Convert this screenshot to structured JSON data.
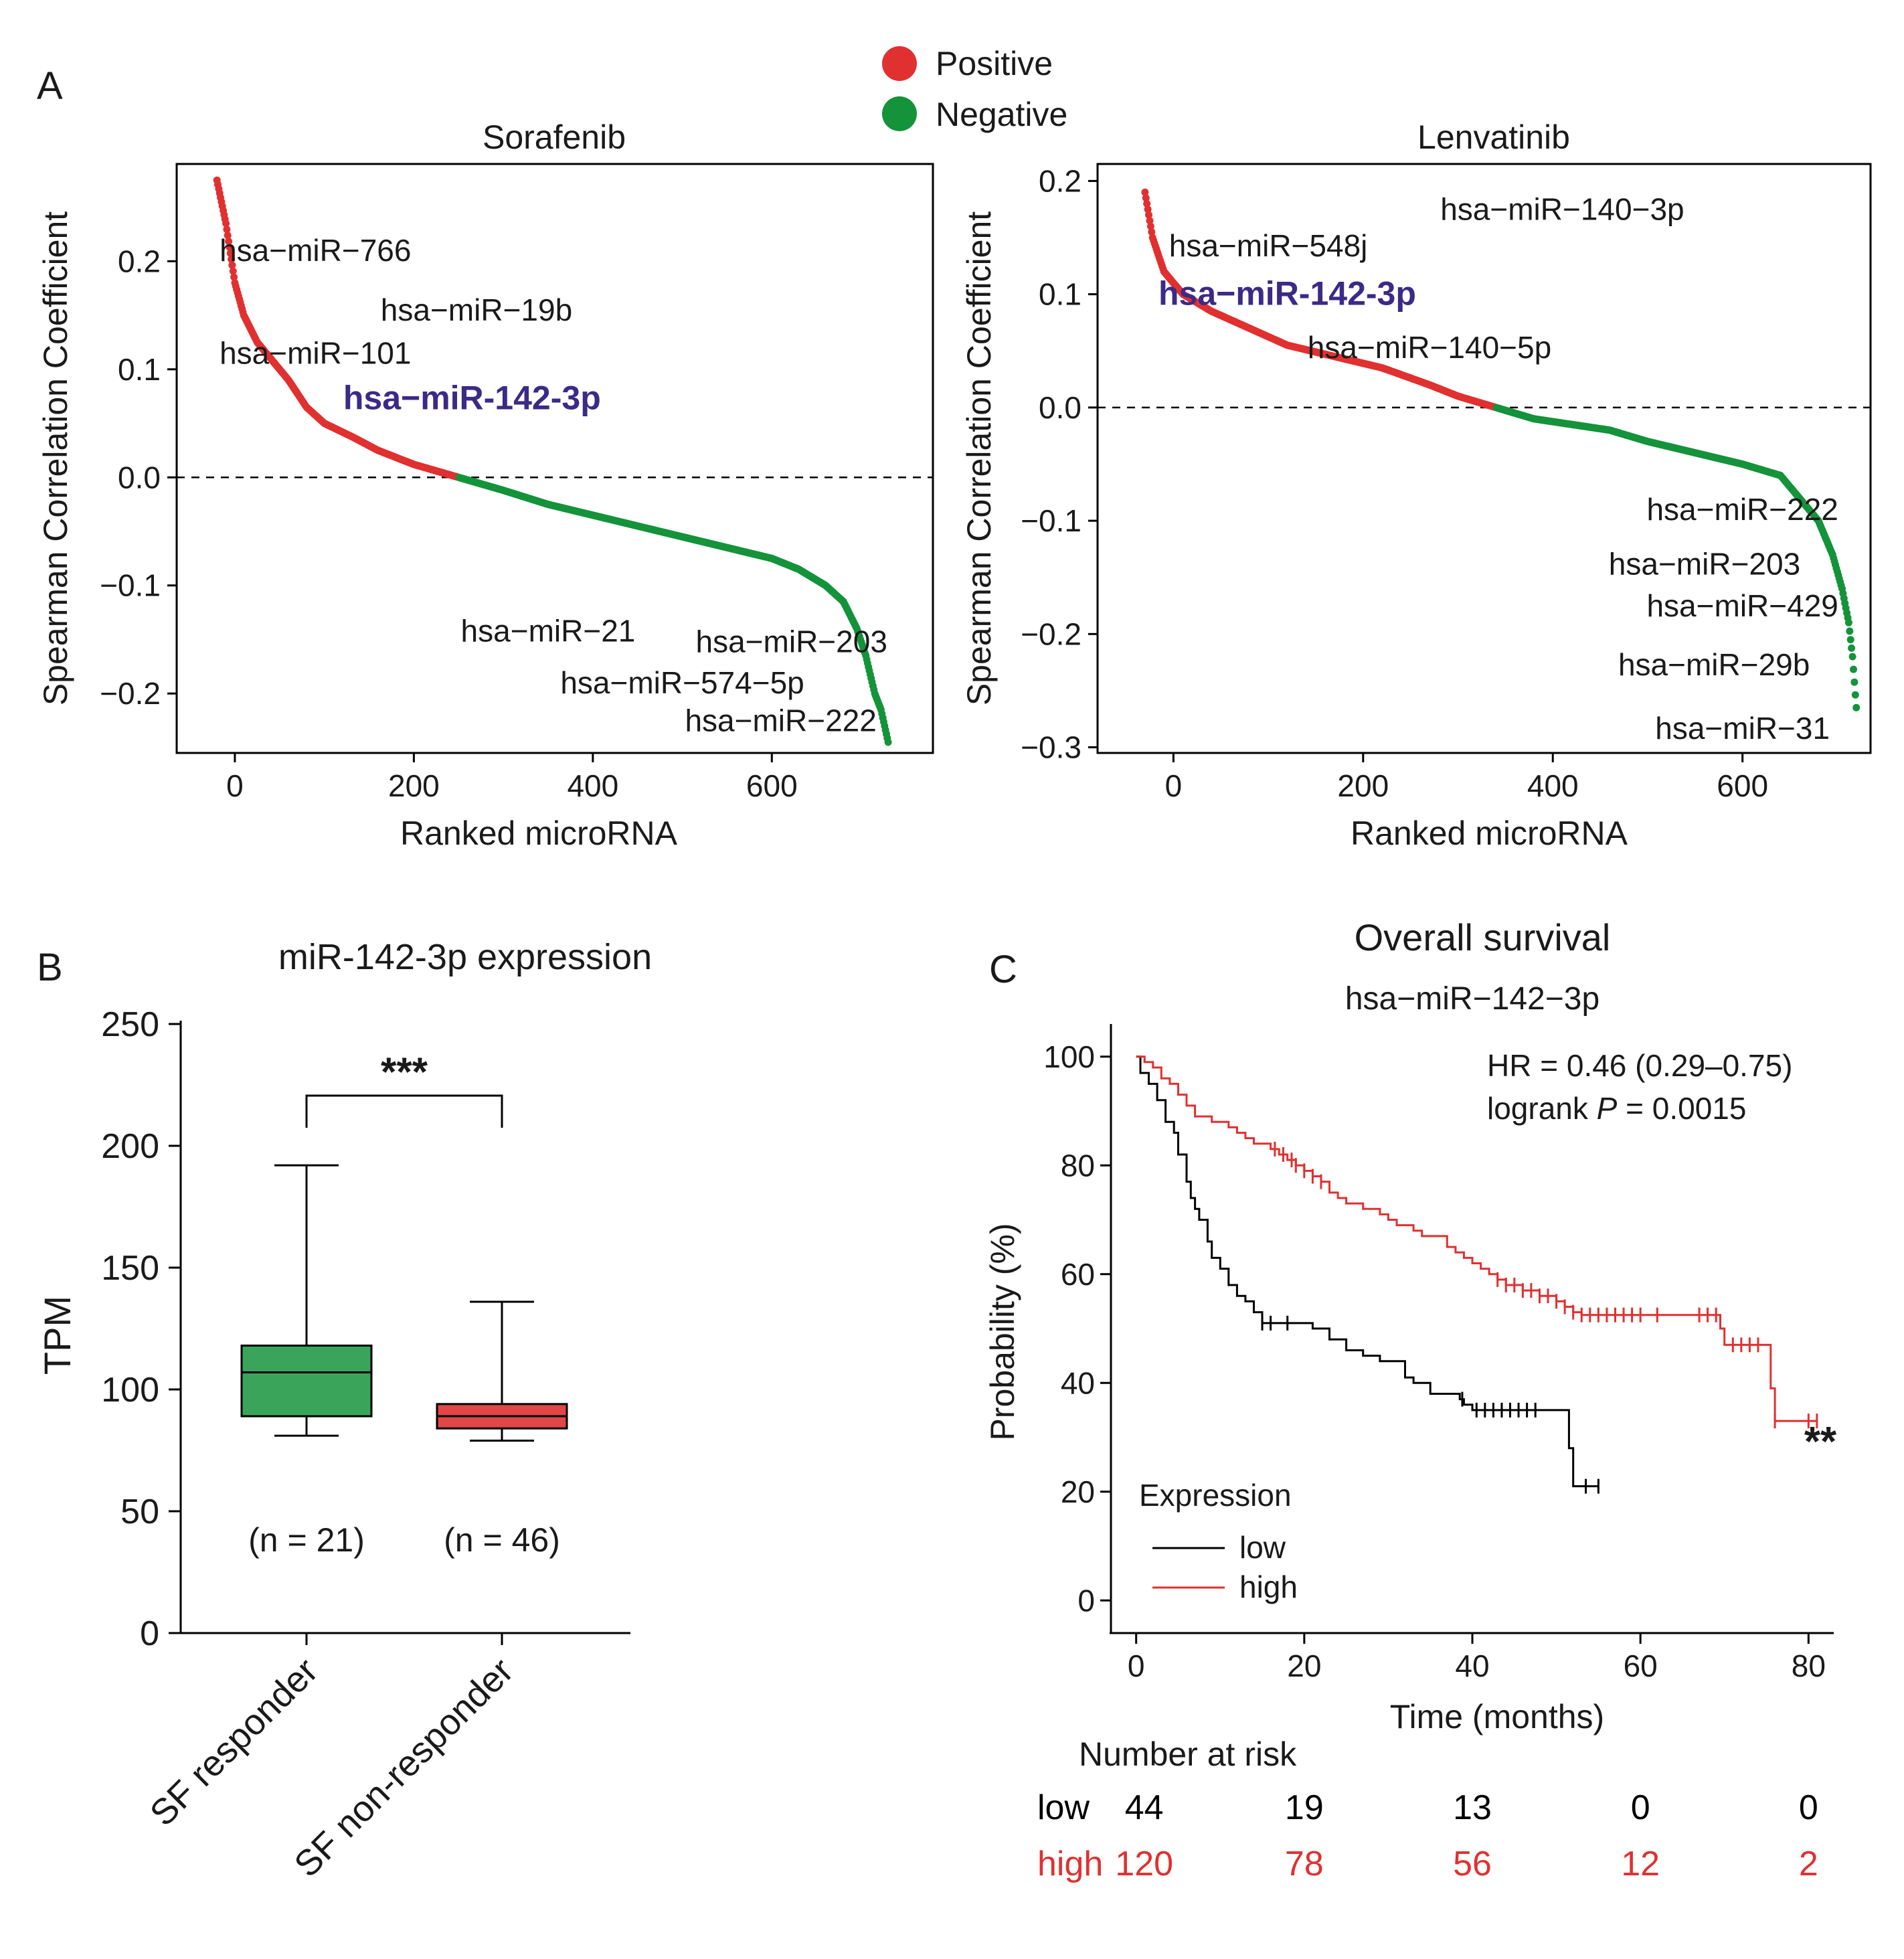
{
  "panel_labels": {
    "a": "A",
    "b": "B",
    "c": "C"
  },
  "legend": {
    "positive": {
      "label": "Positive",
      "color": "#e03030"
    },
    "negative": {
      "label": "Negative",
      "color": "#14933a"
    }
  },
  "colors": {
    "positive": "#e03030",
    "negative": "#14933a",
    "highlight": "#3b2a86",
    "low": "#000000",
    "high": "#e03030",
    "box_green": "#3aa55a",
    "box_red": "#e24646"
  },
  "chart_data": [
    {
      "id": "sorafenib",
      "type": "scatter",
      "title": "Sorafenib",
      "xlabel": "Ranked microRNA",
      "ylabel": "Spearman Correlation Coefficient",
      "xlim": [
        -65,
        780
      ],
      "ylim": [
        -0.255,
        0.29
      ],
      "xticks": [
        0,
        200,
        400,
        600
      ],
      "yticks": [
        0.2,
        0.1,
        0.0,
        -0.1,
        -0.2
      ],
      "ytick_labels": [
        "0.2",
        "0.1",
        "0.0",
        "−0.1",
        "−0.2"
      ],
      "zero_line": true,
      "n_points": 750,
      "x_start": -20,
      "x_end": 730,
      "crossover_rank": 250,
      "curve_knots": [
        [
          -20,
          0.275
        ],
        [
          -10,
          0.235
        ],
        [
          0,
          0.18
        ],
        [
          10,
          0.15
        ],
        [
          25,
          0.125
        ],
        [
          40,
          0.11
        ],
        [
          60,
          0.09
        ],
        [
          80,
          0.065
        ],
        [
          100,
          0.05
        ],
        [
          130,
          0.038
        ],
        [
          160,
          0.025
        ],
        [
          200,
          0.012
        ],
        [
          250,
          0.0
        ],
        [
          300,
          -0.012
        ],
        [
          350,
          -0.025
        ],
        [
          400,
          -0.035
        ],
        [
          450,
          -0.045
        ],
        [
          500,
          -0.055
        ],
        [
          550,
          -0.065
        ],
        [
          600,
          -0.075
        ],
        [
          630,
          -0.085
        ],
        [
          660,
          -0.1
        ],
        [
          680,
          -0.115
        ],
        [
          695,
          -0.14
        ],
        [
          705,
          -0.165
        ],
        [
          715,
          -0.2
        ],
        [
          722,
          -0.215
        ],
        [
          730,
          -0.245
        ]
      ],
      "annotations": [
        {
          "text": "hsa−miR−766",
          "x": 90,
          "y": 0.21,
          "bold": false
        },
        {
          "text": "hsa−miR−19b",
          "x": 270,
          "y": 0.155,
          "bold": false
        },
        {
          "text": "hsa−miR−101",
          "x": 90,
          "y": 0.115,
          "bold": false
        },
        {
          "text": "hsa−miR-142-3p",
          "x": 265,
          "y": 0.073,
          "bold": true
        },
        {
          "text": "hsa−miR−21",
          "x": 350,
          "y": -0.142,
          "bold": false
        },
        {
          "text": "hsa−miR−203",
          "x": 622,
          "y": -0.152,
          "bold": false
        },
        {
          "text": "hsa−miR−574−5p",
          "x": 500,
          "y": -0.19,
          "bold": false
        },
        {
          "text": "hsa−miR−222",
          "x": 610,
          "y": -0.225,
          "bold": false
        }
      ]
    },
    {
      "id": "lenvatinib",
      "type": "scatter",
      "title": "Lenvatinib",
      "xlabel": "Ranked microRNA",
      "ylabel": "Spearman Correlation Coefficient",
      "xlim": [
        -80,
        735
      ],
      "ylim": [
        -0.305,
        0.215
      ],
      "xticks": [
        0,
        200,
        400,
        600
      ],
      "yticks": [
        0.2,
        0.1,
        0.0,
        -0.1,
        -0.2,
        -0.3
      ],
      "ytick_labels": [
        "0.2",
        "0.1",
        "0.0",
        "−0.1",
        "−0.2",
        "−0.3"
      ],
      "zero_line": true,
      "n_points": 750,
      "x_start": -30,
      "x_end": 720,
      "crossover_rank": 340,
      "curve_knots": [
        [
          -30,
          0.19
        ],
        [
          -22,
          0.15
        ],
        [
          -10,
          0.12
        ],
        [
          10,
          0.1
        ],
        [
          40,
          0.085
        ],
        [
          80,
          0.07
        ],
        [
          120,
          0.055
        ],
        [
          170,
          0.045
        ],
        [
          220,
          0.035
        ],
        [
          270,
          0.02
        ],
        [
          300,
          0.01
        ],
        [
          340,
          0.0
        ],
        [
          380,
          -0.01
        ],
        [
          420,
          -0.015
        ],
        [
          460,
          -0.02
        ],
        [
          500,
          -0.03
        ],
        [
          550,
          -0.04
        ],
        [
          600,
          -0.05
        ],
        [
          640,
          -0.06
        ],
        [
          660,
          -0.08
        ],
        [
          680,
          -0.1
        ],
        [
          695,
          -0.13
        ],
        [
          705,
          -0.16
        ],
        [
          712,
          -0.19
        ],
        [
          716,
          -0.22
        ],
        [
          720,
          -0.265
        ]
      ],
      "annotations": [
        {
          "text": "hsa−miR−140−3p",
          "x": 410,
          "y": 0.175,
          "bold": false
        },
        {
          "text": "hsa−miR−548j",
          "x": 100,
          "y": 0.143,
          "bold": false
        },
        {
          "text": "hsa−miR-142-3p",
          "x": 120,
          "y": 0.1,
          "bold": true
        },
        {
          "text": "hsa−miR−140−5p",
          "x": 270,
          "y": 0.053,
          "bold": false
        },
        {
          "text": "hsa−miR−222",
          "x": 600,
          "y": -0.09,
          "bold": false
        },
        {
          "text": "hsa−miR−203",
          "x": 560,
          "y": -0.138,
          "bold": false
        },
        {
          "text": "hsa−miR−429",
          "x": 600,
          "y": -0.175,
          "bold": false
        },
        {
          "text": "hsa−miR−29b",
          "x": 570,
          "y": -0.227,
          "bold": false
        },
        {
          "text": "hsa−miR−31",
          "x": 600,
          "y": -0.283,
          "bold": false
        }
      ]
    },
    {
      "id": "boxplot",
      "type": "box",
      "title": "miR-142-3p expression",
      "ylabel": "TPM",
      "ylim": [
        0,
        250
      ],
      "yticks": [
        0,
        50,
        100,
        150,
        200,
        250
      ],
      "significance": "***",
      "groups": [
        {
          "label": "SF responder",
          "n_label": "(n = 21)",
          "min": 81,
          "q1": 89,
          "median": 107,
          "q3": 118,
          "max": 192,
          "color": "#3aa55a"
        },
        {
          "label": "SF non-responder",
          "n_label": "(n = 46)",
          "min": 79,
          "q1": 84,
          "median": 89,
          "q3": 94,
          "max": 136,
          "color": "#e24646"
        }
      ]
    },
    {
      "id": "survival",
      "type": "line",
      "title": "Overall survival",
      "subtitle": "hsa−miR−142−3p",
      "xlabel": "Time (months)",
      "ylabel": "Probability (%)",
      "xlim": [
        -3,
        83
      ],
      "ylim": [
        -6,
        106
      ],
      "xticks": [
        0,
        20,
        40,
        60,
        80
      ],
      "yticks": [
        0,
        20,
        40,
        60,
        80,
        100
      ],
      "hr_text": "HR = 0.46 (0.29–0.75)",
      "logrank_prefix": "logrank ",
      "logrank_p": "P",
      "logrank_value": " = 0.0015",
      "significance": "**",
      "legend_title": "Expression",
      "series": [
        {
          "name": "low",
          "color": "#000000",
          "steps": [
            [
              0,
              100
            ],
            [
              0.5,
              97
            ],
            [
              1.5,
              95
            ],
            [
              2.5,
              92
            ],
            [
              3.5,
              88
            ],
            [
              4.5,
              86
            ],
            [
              5,
              82
            ],
            [
              6,
              77
            ],
            [
              6.5,
              74
            ],
            [
              7,
              72
            ],
            [
              7.5,
              70
            ],
            [
              8.5,
              66
            ],
            [
              9,
              63
            ],
            [
              10,
              61
            ],
            [
              11,
              58
            ],
            [
              12,
              56
            ],
            [
              13,
              55
            ],
            [
              14,
              53
            ],
            [
              15,
              51
            ],
            [
              21,
              50
            ],
            [
              23,
              48
            ],
            [
              25,
              46
            ],
            [
              27,
              45
            ],
            [
              29,
              44
            ],
            [
              32,
              41
            ],
            [
              33,
              40
            ],
            [
              35,
              38
            ],
            [
              38.5,
              37
            ],
            [
              39,
              36
            ],
            [
              40,
              35
            ],
            [
              50,
              35
            ],
            [
              51.5,
              28
            ],
            [
              52,
              21
            ],
            [
              55,
              21
            ]
          ],
          "censor_x": [
            15,
            16,
            18,
            38.8,
            40.5,
            41.5,
            42.5,
            43.5,
            44.5,
            45.5,
            46.5,
            47.5,
            53.5,
            55
          ]
        },
        {
          "name": "high",
          "color": "#e03030",
          "steps": [
            [
              0,
              100
            ],
            [
              1,
              99
            ],
            [
              2,
              98
            ],
            [
              3,
              96
            ],
            [
              4,
              95
            ],
            [
              5,
              93
            ],
            [
              6,
              91
            ],
            [
              7,
              89
            ],
            [
              9,
              88
            ],
            [
              11,
              87
            ],
            [
              12,
              86
            ],
            [
              13,
              85
            ],
            [
              14,
              84
            ],
            [
              16,
              83
            ],
            [
              17,
              82
            ],
            [
              18,
              81
            ],
            [
              19,
              80
            ],
            [
              20,
              79
            ],
            [
              21,
              78
            ],
            [
              22,
              77
            ],
            [
              23,
              75
            ],
            [
              24,
              74
            ],
            [
              25,
              73
            ],
            [
              27,
              72
            ],
            [
              29,
              71
            ],
            [
              30,
              70
            ],
            [
              31,
              69
            ],
            [
              33,
              68
            ],
            [
              34,
              67
            ],
            [
              37,
              65
            ],
            [
              38,
              64
            ],
            [
              39,
              63
            ],
            [
              40,
              62
            ],
            [
              41,
              61
            ],
            [
              42,
              60
            ],
            [
              43,
              59
            ],
            [
              44,
              58
            ],
            [
              46,
              57
            ],
            [
              48,
              56
            ],
            [
              50,
              55
            ],
            [
              51,
              54
            ],
            [
              52,
              53
            ],
            [
              53,
              52.5
            ],
            [
              69,
              52.5
            ],
            [
              69.5,
              50
            ],
            [
              70,
              47
            ],
            [
              75,
              47
            ],
            [
              75.5,
              39
            ],
            [
              76,
              33
            ],
            [
              81,
              33
            ]
          ],
          "censor_x": [
            16.5,
            17.5,
            18.5,
            19,
            20,
            21,
            22,
            43,
            44,
            45,
            46,
            47,
            48,
            49,
            50,
            51,
            52,
            53,
            54,
            55,
            56,
            57,
            58,
            59,
            60,
            62,
            67,
            68,
            69,
            71,
            72,
            73,
            74,
            76,
            80,
            81
          ]
        }
      ],
      "risk_table": {
        "title": "Number at risk",
        "times": [
          0,
          20,
          40,
          60,
          80
        ],
        "rows": [
          {
            "label": "low",
            "color": "#000000",
            "values": [
              "44",
              "19",
              "13",
              "0",
              "0"
            ]
          },
          {
            "label": "high",
            "color": "#e03030",
            "values": [
              "120",
              "78",
              "56",
              "12",
              "2"
            ]
          }
        ]
      }
    }
  ]
}
